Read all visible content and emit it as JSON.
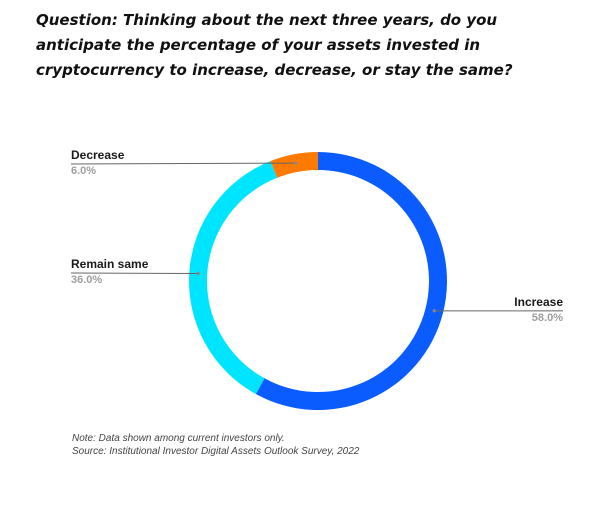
{
  "chart_data": {
    "type": "pie",
    "donut": true,
    "title": "Question: Thinking about the next three years, do you anticipate the percentage of your assets invested in cryptocurrency to increase, decrease, or stay the same?",
    "slices": [
      {
        "label": "Increase",
        "value": 58.0,
        "value_label": "58.0%",
        "color": "#0a5cff"
      },
      {
        "label": "Remain same",
        "value": 36.0,
        "value_label": "36.0%",
        "color": "#00e5ff"
      },
      {
        "label": "Decrease",
        "value": 6.0,
        "value_label": "6.0%",
        "color": "#ff7a00"
      }
    ],
    "note": "Note: Data shown among current investors only.",
    "source": "Source: Institutional Investor Digital Assets Outlook Survey, 2022"
  }
}
